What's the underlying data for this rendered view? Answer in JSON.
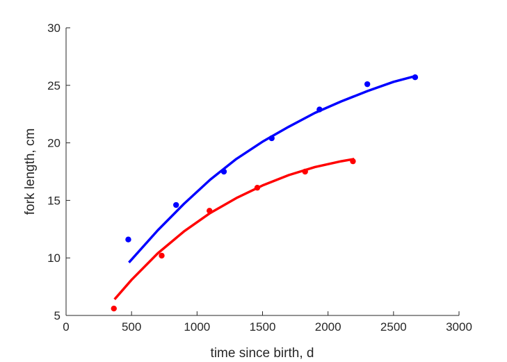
{
  "chart_data": {
    "type": "scatter",
    "xlabel": "time since birth, d",
    "ylabel": "fork length, cm",
    "xlim": [
      0,
      3000
    ],
    "ylim": [
      5,
      30
    ],
    "xticks": [
      0,
      500,
      1000,
      1500,
      2000,
      2500,
      3000
    ],
    "yticks": [
      5,
      10,
      15,
      20,
      25,
      30
    ],
    "grid": false,
    "series": [
      {
        "color": "#0000ff",
        "points": [
          {
            "x": 475,
            "y": 11.6
          },
          {
            "x": 840,
            "y": 14.6
          },
          {
            "x": 1205,
            "y": 17.5
          },
          {
            "x": 1570,
            "y": 20.4
          },
          {
            "x": 1935,
            "y": 22.9
          },
          {
            "x": 2300,
            "y": 25.1
          },
          {
            "x": 2665,
            "y": 25.7
          }
        ],
        "fit": [
          {
            "x": 480,
            "y": 9.6
          },
          {
            "x": 700,
            "y": 12.4
          },
          {
            "x": 900,
            "y": 14.7
          },
          {
            "x": 1100,
            "y": 16.8
          },
          {
            "x": 1300,
            "y": 18.6
          },
          {
            "x": 1500,
            "y": 20.1
          },
          {
            "x": 1700,
            "y": 21.4
          },
          {
            "x": 1900,
            "y": 22.6
          },
          {
            "x": 2100,
            "y": 23.6
          },
          {
            "x": 2300,
            "y": 24.5
          },
          {
            "x": 2500,
            "y": 25.3
          },
          {
            "x": 2665,
            "y": 25.8
          }
        ]
      },
      {
        "color": "#ff0000",
        "points": [
          {
            "x": 365,
            "y": 5.6
          },
          {
            "x": 730,
            "y": 10.2
          },
          {
            "x": 1095,
            "y": 14.1
          },
          {
            "x": 1460,
            "y": 16.1
          },
          {
            "x": 1825,
            "y": 17.5
          },
          {
            "x": 2190,
            "y": 18.4
          }
        ],
        "fit": [
          {
            "x": 370,
            "y": 6.4
          },
          {
            "x": 500,
            "y": 8.1
          },
          {
            "x": 700,
            "y": 10.4
          },
          {
            "x": 900,
            "y": 12.3
          },
          {
            "x": 1100,
            "y": 13.9
          },
          {
            "x": 1300,
            "y": 15.2
          },
          {
            "x": 1500,
            "y": 16.3
          },
          {
            "x": 1700,
            "y": 17.2
          },
          {
            "x": 1900,
            "y": 17.9
          },
          {
            "x": 2100,
            "y": 18.4
          },
          {
            "x": 2200,
            "y": 18.6
          }
        ]
      }
    ]
  }
}
